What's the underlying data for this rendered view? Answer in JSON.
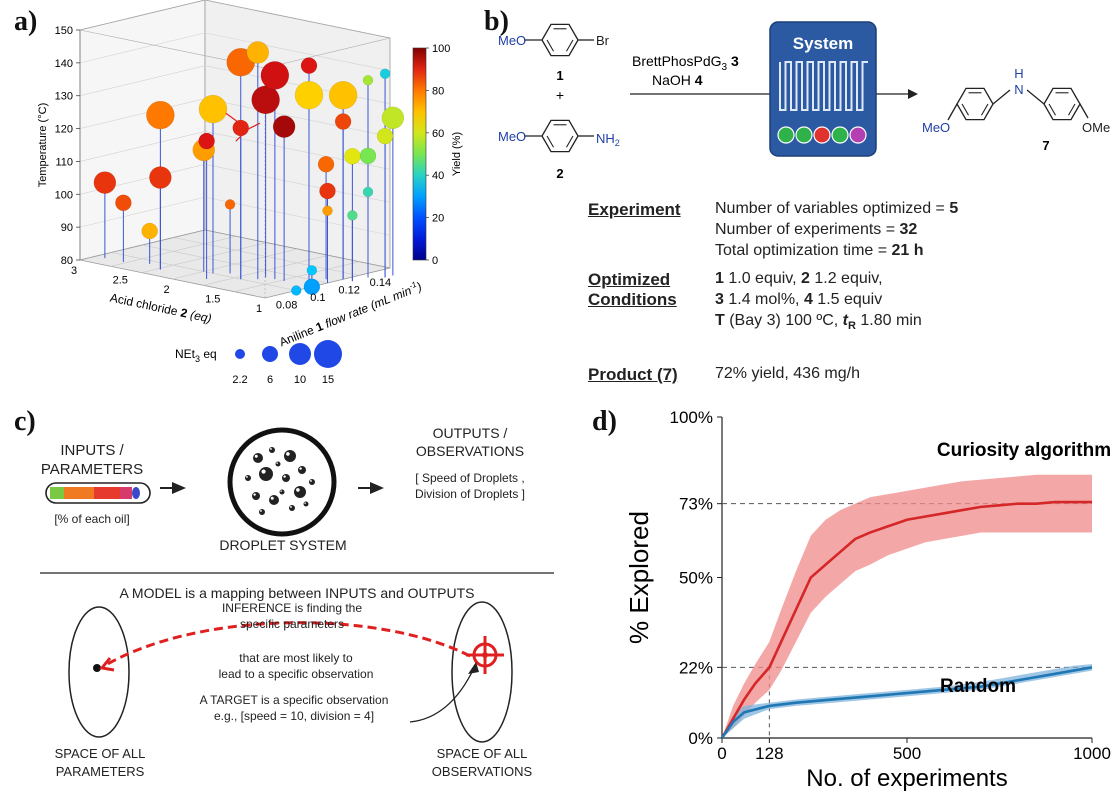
{
  "colors": {
    "curiosity": "#d62728",
    "curiosity_band": "#f08a8a",
    "random": "#1f77b4",
    "random_band": "#7fb3dc",
    "stem": "#3a55d6",
    "bubble_legend": "#1f48e6"
  },
  "panel_a": {
    "label": "a)",
    "chart_data": {
      "type": "scatter3d",
      "x_axis": {
        "label_prefix": "Aniline ",
        "label_bold": "1",
        "label_suffix": " flow rate (mL min",
        "label_sup": "-1",
        "label_end": ")",
        "ticks": [
          "0.08",
          "0.1",
          "0.12",
          "0.14"
        ],
        "range": [
          0.07,
          0.15
        ]
      },
      "y_axis": {
        "label_prefix": "Acid chloride ",
        "label_bold": "2",
        "label_suffix": " (eq)",
        "ticks": [
          "3",
          "2.5",
          "2",
          "1.5",
          "1"
        ],
        "range": [
          0.8,
          3.0
        ]
      },
      "z_axis": {
        "label": "Temperature (°C)",
        "ticks": [
          "80",
          "90",
          "100",
          "110",
          "120",
          "130",
          "140",
          "150"
        ],
        "range": [
          80,
          150
        ]
      },
      "colorbar": {
        "label": "Yield (%)",
        "ticks": [
          "0",
          "20",
          "40",
          "60",
          "80",
          "100"
        ],
        "range": [
          0,
          100
        ]
      },
      "size_legend": {
        "label": "NEt",
        "label_sub": "3",
        "label_end": " eq",
        "values": [
          "2.2",
          "6",
          "10",
          "15"
        ]
      },
      "points": [
        {
          "x": 0.08,
          "y": 2.9,
          "z": 103,
          "yield": 88,
          "net": 10
        },
        {
          "x": 0.08,
          "y": 2.7,
          "z": 98,
          "yield": 85,
          "net": 6
        },
        {
          "x": 0.085,
          "y": 2.5,
          "z": 90,
          "yield": 72,
          "net": 6
        },
        {
          "x": 0.08,
          "y": 2.3,
          "z": 108,
          "yield": 88,
          "net": 10
        },
        {
          "x": 0.08,
          "y": 2.3,
          "z": 127,
          "yield": 80,
          "net": 15
        },
        {
          "x": 0.09,
          "y": 2.0,
          "z": 117,
          "yield": 75,
          "net": 10
        },
        {
          "x": 0.09,
          "y": 1.9,
          "z": 130,
          "yield": 70,
          "net": 15
        },
        {
          "x": 0.08,
          "y": 1.8,
          "z": 122,
          "yield": 92,
          "net": 6
        },
        {
          "x": 0.09,
          "y": 1.6,
          "z": 126,
          "yield": 90,
          "net": 6
        },
        {
          "x": 0.09,
          "y": 1.6,
          "z": 146,
          "yield": 82,
          "net": 15
        },
        {
          "x": 0.1,
          "y": 1.5,
          "z": 134,
          "yield": 95,
          "net": 15
        },
        {
          "x": 0.1,
          "y": 1.4,
          "z": 142,
          "yield": 93,
          "net": 15
        },
        {
          "x": 0.1,
          "y": 1.3,
          "z": 127,
          "yield": 97,
          "net": 10
        },
        {
          "x": 0.095,
          "y": 1.5,
          "z": 149,
          "yield": 72,
          "net": 10
        },
        {
          "x": 0.11,
          "y": 1.2,
          "z": 145,
          "yield": 92,
          "net": 6
        },
        {
          "x": 0.11,
          "y": 1.2,
          "z": 136,
          "yield": 68,
          "net": 15
        },
        {
          "x": 0.12,
          "y": 1.0,
          "z": 136,
          "yield": 70,
          "net": 15
        },
        {
          "x": 0.12,
          "y": 1.0,
          "z": 128,
          "yield": 86,
          "net": 6
        },
        {
          "x": 0.13,
          "y": 0.9,
          "z": 140,
          "yield": 55,
          "net": 2.2
        },
        {
          "x": 0.135,
          "y": 0.8,
          "z": 142,
          "yield": 38,
          "net": 2.2
        },
        {
          "x": 0.115,
          "y": 1.1,
          "z": 115,
          "yield": 82,
          "net": 6
        },
        {
          "x": 0.11,
          "y": 1.0,
          "z": 108,
          "yield": 88,
          "net": 6
        },
        {
          "x": 0.11,
          "y": 1.0,
          "z": 102,
          "yield": 75,
          "net": 2.2
        },
        {
          "x": 0.12,
          "y": 0.9,
          "z": 118,
          "yield": 62,
          "net": 6
        },
        {
          "x": 0.13,
          "y": 0.9,
          "z": 117,
          "yield": 50,
          "net": 6
        },
        {
          "x": 0.135,
          "y": 0.8,
          "z": 123,
          "yield": 60,
          "net": 6
        },
        {
          "x": 0.14,
          "y": 0.8,
          "z": 128,
          "yield": 58,
          "net": 10
        },
        {
          "x": 0.12,
          "y": 0.9,
          "z": 100,
          "yield": 45,
          "net": 2.2
        },
        {
          "x": 0.1,
          "y": 1.0,
          "z": 85,
          "yield": 35,
          "net": 2.2
        },
        {
          "x": 0.1,
          "y": 1.0,
          "z": 80,
          "yield": 30,
          "net": 6
        },
        {
          "x": 0.09,
          "y": 1.0,
          "z": 80,
          "yield": 33,
          "net": 2.2
        },
        {
          "x": 0.095,
          "y": 1.8,
          "z": 101,
          "yield": 82,
          "net": 2.2
        },
        {
          "x": 0.13,
          "y": 0.9,
          "z": 106,
          "yield": 42,
          "net": 2.2
        }
      ]
    }
  },
  "panel_b": {
    "label": "b)",
    "reactant1": {
      "meo": "MeO",
      "br": "Br",
      "number": "1"
    },
    "plus": "+",
    "reactant2": {
      "meo": "MeO",
      "nh2": "NH",
      "nh2_sub": "2",
      "number": "2"
    },
    "reagents_line1": {
      "text": "BrettPhosPdG",
      "sub": "3",
      "num": "3"
    },
    "reagents_line2": {
      "text": "NaOH ",
      "num": "4"
    },
    "system_label": "System",
    "system_dots": [
      "#2fb24a",
      "#2fb24a",
      "#e0322f",
      "#2fb24a",
      "#b33fb3"
    ],
    "product": {
      "nh": "N",
      "h": "H",
      "meo": "MeO",
      "ome": "OMe",
      "number": "7"
    },
    "rows": [
      {
        "heading": "Experiment",
        "lines": [
          [
            "Number of variables optimized =  ",
            {
              "b": "5"
            }
          ],
          [
            "Number of experiments = ",
            {
              "b": "32"
            }
          ],
          [
            "Total optimization time = ",
            {
              "b": "21 h"
            }
          ]
        ]
      },
      {
        "heading": "Optimized",
        "heading2": "Conditions",
        "lines": [
          [
            {
              "b": "1"
            },
            " 1.0 equiv, ",
            {
              "b": "2"
            },
            " 1.2 equiv,"
          ],
          [
            {
              "b": "3"
            },
            " 1.4 mol%, ",
            {
              "b": "4"
            },
            " 1.5 equiv"
          ],
          [
            {
              "b": "T"
            },
            " (Bay 3) 100 ºC, ",
            {
              "bi": "t"
            },
            {
              "bsub": "R"
            },
            " 1.80 min"
          ]
        ]
      },
      {
        "heading": "Product (7)",
        "lines": [
          [
            "72% yield, 436 mg/h"
          ]
        ]
      }
    ]
  },
  "panel_c": {
    "label": "c)",
    "inputs": [
      "INPUTS /",
      "PARAMETERS"
    ],
    "inputs_note": "[% of each oil]",
    "system": "DROPLET SYSTEM",
    "outputs": [
      "OUTPUTS /",
      "OBSERVATIONS"
    ],
    "outputs_note": [
      "[ Speed of Droplets ,",
      "Division of Droplets ]"
    ],
    "model": "A MODEL is a mapping  between INPUTS and  OUTPUTS",
    "inference": [
      "INFERENCE is finding the",
      "specific parameters"
    ],
    "likely": [
      "that are most likely to",
      "lead to a specific observation"
    ],
    "target": [
      "A TARGET is a specific  observation",
      "e.g., [speed = 10, division = 4]"
    ],
    "space_params": [
      "SPACE OF ALL",
      "PARAMETERS"
    ],
    "space_obs": [
      "SPACE OF ALL",
      "OBSERVATIONS"
    ],
    "tube_colors": [
      "#7ac943",
      "#f07a22",
      "#e63a2e",
      "#d63a6a",
      "#3b48c8"
    ]
  },
  "panel_d": {
    "label": "d)",
    "chart_data": {
      "type": "line",
      "xlabel": "No. of experiments",
      "ylabel": "% Explored",
      "xlim": [
        0,
        1000
      ],
      "ylim": [
        0,
        100
      ],
      "xticks": [
        {
          "v": 0,
          "t": "0"
        },
        {
          "v": 128,
          "t": "128"
        },
        {
          "v": 500,
          "t": "500"
        },
        {
          "v": 1000,
          "t": "1000"
        }
      ],
      "yticks": [
        {
          "v": 0,
          "t": "0%"
        },
        {
          "v": 22,
          "t": "22%"
        },
        {
          "v": 50,
          "t": "50%"
        },
        {
          "v": 73,
          "t": "73%"
        },
        {
          "v": 100,
          "t": "100%"
        }
      ],
      "ref_lines": {
        "y": [
          73,
          22
        ],
        "x": [
          128
        ]
      },
      "series": [
        {
          "name": "Curiosity algorithm",
          "x": [
            0,
            30,
            60,
            90,
            128,
            160,
            200,
            240,
            280,
            320,
            360,
            400,
            450,
            500,
            550,
            600,
            650,
            700,
            750,
            800,
            850,
            900,
            950,
            1000
          ],
          "y": [
            0,
            6,
            12,
            17,
            22,
            30,
            40,
            50,
            54,
            58,
            62,
            64,
            66,
            68,
            69,
            70,
            71,
            72,
            72.5,
            73,
            73,
            73.5,
            73.5,
            73.5
          ],
          "lo": [
            0,
            3,
            7,
            11,
            15,
            21,
            30,
            39,
            44,
            48,
            52,
            54,
            57,
            59,
            61,
            62,
            63,
            64,
            64,
            64,
            64,
            64,
            64,
            64
          ],
          "hi": [
            0,
            10,
            17,
            23,
            30,
            40,
            52,
            63,
            68,
            71,
            73,
            75,
            76,
            77,
            78,
            79,
            80,
            80.5,
            81,
            81.5,
            82,
            82,
            82,
            82
          ]
        },
        {
          "name": "Random",
          "x": [
            0,
            30,
            60,
            128,
            200,
            300,
            400,
            500,
            600,
            700,
            800,
            900,
            950,
            1000
          ],
          "y": [
            0,
            5,
            8,
            10,
            11,
            12,
            13,
            14,
            15,
            16,
            18,
            20,
            21,
            22
          ],
          "lo": [
            0,
            3,
            6,
            9,
            10,
            11,
            12,
            13,
            14,
            15,
            17,
            19,
            20,
            21
          ],
          "hi": [
            0,
            7,
            10,
            11,
            12,
            13,
            14,
            15,
            16,
            17.5,
            19.5,
            21.5,
            22.5,
            23
          ]
        }
      ]
    }
  }
}
